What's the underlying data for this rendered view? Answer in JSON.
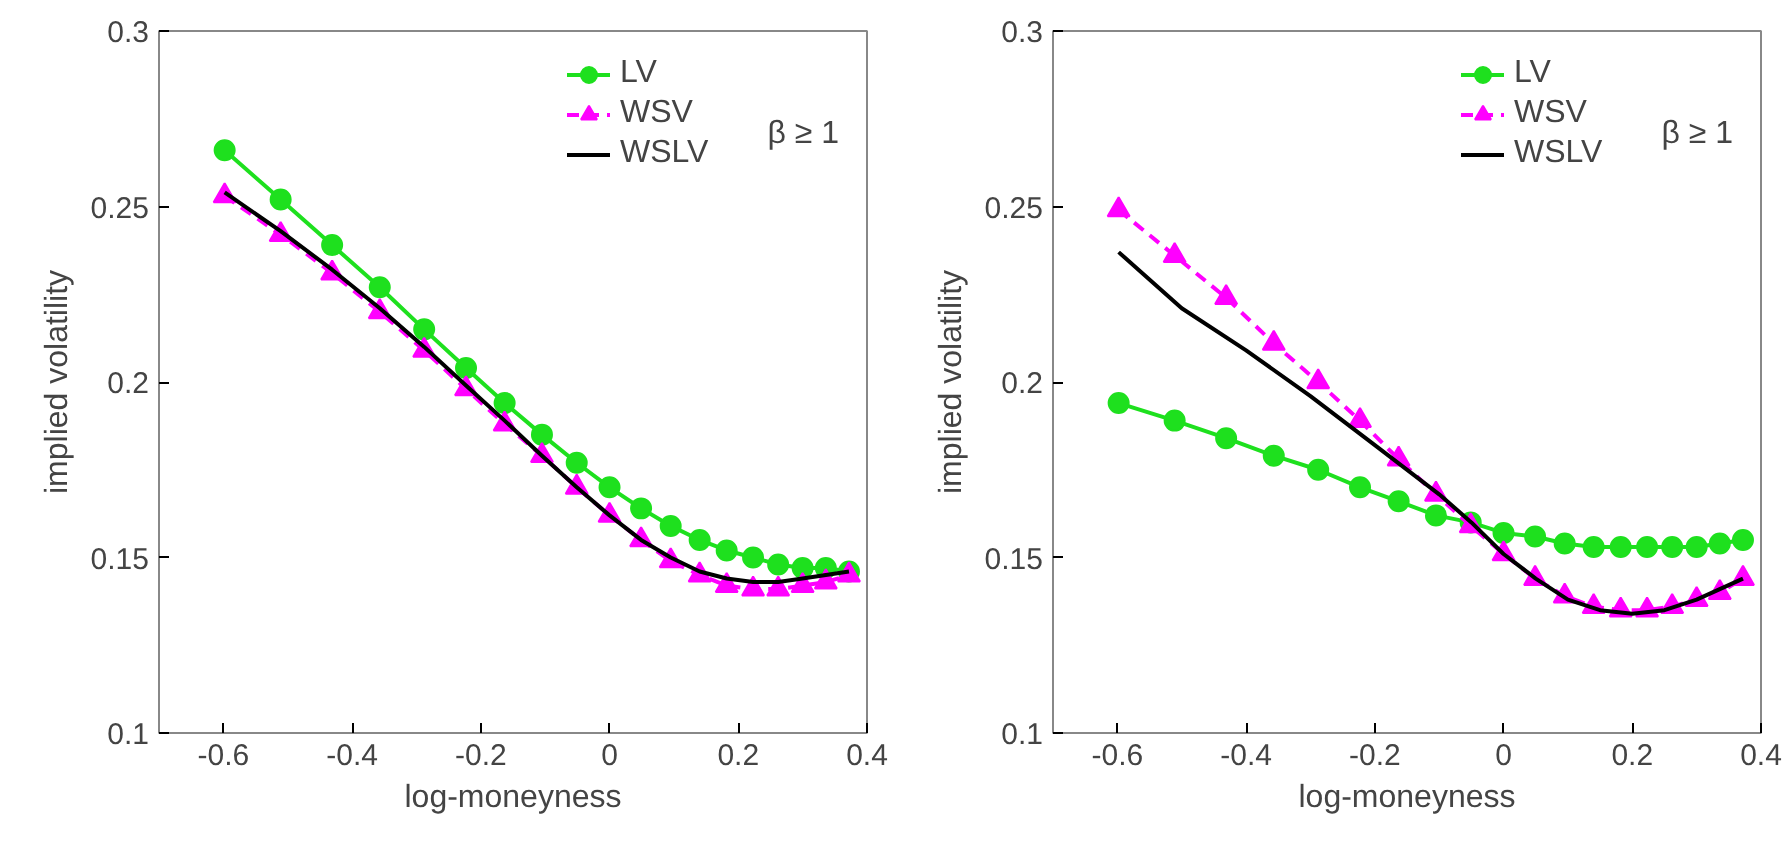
{
  "chart_data": [
    {
      "type": "line",
      "xlabel": "log-moneyness",
      "ylabel": "implied volatility",
      "xlim": [
        -0.7,
        0.4
      ],
      "ylim": [
        0.1,
        0.3
      ],
      "xticks": [
        -0.6,
        -0.4,
        -0.2,
        0,
        0.2,
        0.4
      ],
      "yticks": [
        0.1,
        0.15,
        0.2,
        0.25,
        0.3
      ],
      "grid": false,
      "legend": "top right",
      "annotations": [
        "β ≥ 1"
      ],
      "series": [
        {
          "name": "LV",
          "color": "#1ee01e",
          "marker": "circle",
          "line_style": "solid",
          "x": [
            -0.598,
            -0.511,
            -0.431,
            -0.357,
            -0.288,
            -0.223,
            -0.163,
            -0.105,
            -0.051,
            0,
            0.049,
            0.095,
            0.14,
            0.182,
            0.223,
            0.262,
            0.3,
            0.336,
            0.372
          ],
          "values": [
            0.266,
            0.252,
            0.239,
            0.227,
            0.215,
            0.204,
            0.194,
            0.185,
            0.177,
            0.17,
            0.164,
            0.159,
            0.155,
            0.152,
            0.15,
            0.148,
            0.147,
            0.147,
            0.146
          ]
        },
        {
          "name": "WSV",
          "color": "#ff00ff",
          "marker": "triangle",
          "line_style": "dashed",
          "x": [
            -0.598,
            -0.511,
            -0.431,
            -0.357,
            -0.288,
            -0.223,
            -0.163,
            -0.105,
            -0.051,
            0,
            0.049,
            0.095,
            0.14,
            0.182,
            0.223,
            0.262,
            0.3,
            0.336,
            0.372
          ],
          "values": [
            0.253,
            0.242,
            0.231,
            0.22,
            0.209,
            0.198,
            0.188,
            0.179,
            0.17,
            0.162,
            0.155,
            0.149,
            0.145,
            0.142,
            0.141,
            0.141,
            0.142,
            0.143,
            0.145
          ]
        },
        {
          "name": "WSLV",
          "color": "#000000",
          "marker": "none",
          "line_style": "solid",
          "x": [
            -0.598,
            -0.511,
            -0.431,
            -0.357,
            -0.288,
            -0.223,
            -0.163,
            -0.105,
            -0.051,
            0,
            0.049,
            0.095,
            0.14,
            0.182,
            0.223,
            0.262,
            0.3,
            0.336,
            0.372
          ],
          "values": [
            0.254,
            0.243,
            0.232,
            0.221,
            0.21,
            0.199,
            0.189,
            0.179,
            0.17,
            0.162,
            0.155,
            0.15,
            0.146,
            0.144,
            0.143,
            0.143,
            0.144,
            0.145,
            0.146
          ]
        }
      ]
    },
    {
      "type": "line",
      "xlabel": "log-moneyness",
      "ylabel": "implied volatility",
      "xlim": [
        -0.7,
        0.4
      ],
      "ylim": [
        0.1,
        0.3
      ],
      "xticks": [
        -0.6,
        -0.4,
        -0.2,
        0,
        0.2,
        0.4
      ],
      "yticks": [
        0.1,
        0.15,
        0.2,
        0.25,
        0.3
      ],
      "grid": false,
      "legend": "top right",
      "annotations": [
        "β ≥ 1"
      ],
      "series": [
        {
          "name": "LV",
          "color": "#1ee01e",
          "marker": "circle",
          "line_style": "solid",
          "x": [
            -0.598,
            -0.511,
            -0.431,
            -0.357,
            -0.288,
            -0.223,
            -0.163,
            -0.105,
            -0.051,
            0,
            0.049,
            0.095,
            0.14,
            0.182,
            0.223,
            0.262,
            0.3,
            0.336,
            0.372
          ],
          "values": [
            0.194,
            0.189,
            0.184,
            0.179,
            0.175,
            0.17,
            0.166,
            0.162,
            0.16,
            0.157,
            0.156,
            0.154,
            0.153,
            0.153,
            0.153,
            0.153,
            0.153,
            0.154,
            0.155
          ]
        },
        {
          "name": "WSV",
          "color": "#ff00ff",
          "marker": "triangle",
          "line_style": "dashed",
          "x": [
            -0.598,
            -0.511,
            -0.431,
            -0.357,
            -0.288,
            -0.223,
            -0.163,
            -0.105,
            -0.051,
            0,
            0.049,
            0.095,
            0.14,
            0.182,
            0.223,
            0.262,
            0.3,
            0.336,
            0.372
          ],
          "values": [
            0.249,
            0.236,
            0.224,
            0.211,
            0.2,
            0.189,
            0.178,
            0.168,
            0.159,
            0.151,
            0.144,
            0.139,
            0.136,
            0.135,
            0.135,
            0.136,
            0.138,
            0.14,
            0.144
          ]
        },
        {
          "name": "WSLV",
          "color": "#000000",
          "marker": "none",
          "line_style": "solid",
          "x": [
            -0.598,
            -0.5,
            -0.4,
            -0.3,
            -0.2,
            -0.1,
            -0.05,
            0,
            0.05,
            0.1,
            0.15,
            0.2,
            0.25,
            0.3,
            0.372
          ],
          "values": [
            0.237,
            0.221,
            0.209,
            0.196,
            0.182,
            0.168,
            0.16,
            0.151,
            0.144,
            0.138,
            0.135,
            0.134,
            0.135,
            0.138,
            0.144
          ]
        }
      ]
    }
  ]
}
